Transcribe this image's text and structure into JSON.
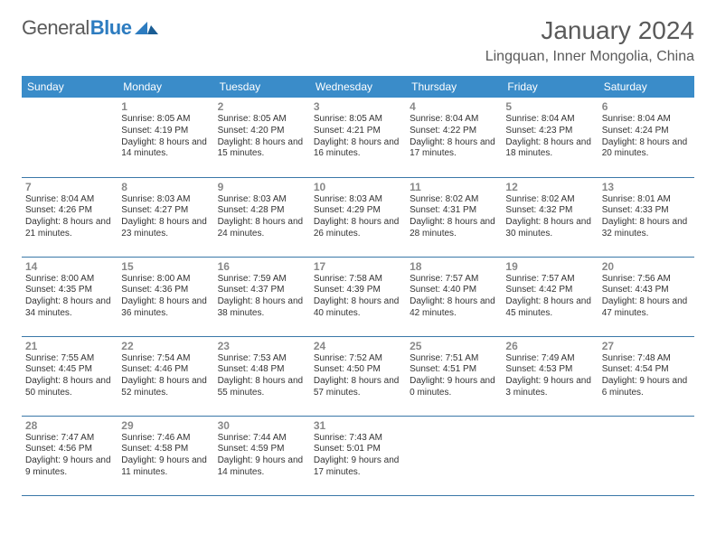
{
  "logo": {
    "general": "General",
    "blue": "Blue"
  },
  "title": "January 2024",
  "location": "Lingquan, Inner Mongolia, China",
  "colors": {
    "header_bg": "#3a8cc9",
    "header_text": "#ffffff",
    "row_border": "#3a78a8",
    "daynum": "#888888",
    "body_text": "#333333",
    "title_text": "#5a5a5a",
    "logo_blue": "#2d7cc0",
    "page_bg": "#ffffff"
  },
  "typography": {
    "title_fontsize": 28,
    "location_fontsize": 16,
    "dayheader_fontsize": 12,
    "daynum_fontsize": 12,
    "info_fontsize": 10
  },
  "dayHeaders": [
    "Sunday",
    "Monday",
    "Tuesday",
    "Wednesday",
    "Thursday",
    "Friday",
    "Saturday"
  ],
  "weeks": [
    [
      {
        "day": "",
        "sunrise": "",
        "sunset": "",
        "daylight": ""
      },
      {
        "day": "1",
        "sunrise": "Sunrise: 8:05 AM",
        "sunset": "Sunset: 4:19 PM",
        "daylight": "Daylight: 8 hours and 14 minutes."
      },
      {
        "day": "2",
        "sunrise": "Sunrise: 8:05 AM",
        "sunset": "Sunset: 4:20 PM",
        "daylight": "Daylight: 8 hours and 15 minutes."
      },
      {
        "day": "3",
        "sunrise": "Sunrise: 8:05 AM",
        "sunset": "Sunset: 4:21 PM",
        "daylight": "Daylight: 8 hours and 16 minutes."
      },
      {
        "day": "4",
        "sunrise": "Sunrise: 8:04 AM",
        "sunset": "Sunset: 4:22 PM",
        "daylight": "Daylight: 8 hours and 17 minutes."
      },
      {
        "day": "5",
        "sunrise": "Sunrise: 8:04 AM",
        "sunset": "Sunset: 4:23 PM",
        "daylight": "Daylight: 8 hours and 18 minutes."
      },
      {
        "day": "6",
        "sunrise": "Sunrise: 8:04 AM",
        "sunset": "Sunset: 4:24 PM",
        "daylight": "Daylight: 8 hours and 20 minutes."
      }
    ],
    [
      {
        "day": "7",
        "sunrise": "Sunrise: 8:04 AM",
        "sunset": "Sunset: 4:26 PM",
        "daylight": "Daylight: 8 hours and 21 minutes."
      },
      {
        "day": "8",
        "sunrise": "Sunrise: 8:03 AM",
        "sunset": "Sunset: 4:27 PM",
        "daylight": "Daylight: 8 hours and 23 minutes."
      },
      {
        "day": "9",
        "sunrise": "Sunrise: 8:03 AM",
        "sunset": "Sunset: 4:28 PM",
        "daylight": "Daylight: 8 hours and 24 minutes."
      },
      {
        "day": "10",
        "sunrise": "Sunrise: 8:03 AM",
        "sunset": "Sunset: 4:29 PM",
        "daylight": "Daylight: 8 hours and 26 minutes."
      },
      {
        "day": "11",
        "sunrise": "Sunrise: 8:02 AM",
        "sunset": "Sunset: 4:31 PM",
        "daylight": "Daylight: 8 hours and 28 minutes."
      },
      {
        "day": "12",
        "sunrise": "Sunrise: 8:02 AM",
        "sunset": "Sunset: 4:32 PM",
        "daylight": "Daylight: 8 hours and 30 minutes."
      },
      {
        "day": "13",
        "sunrise": "Sunrise: 8:01 AM",
        "sunset": "Sunset: 4:33 PM",
        "daylight": "Daylight: 8 hours and 32 minutes."
      }
    ],
    [
      {
        "day": "14",
        "sunrise": "Sunrise: 8:00 AM",
        "sunset": "Sunset: 4:35 PM",
        "daylight": "Daylight: 8 hours and 34 minutes."
      },
      {
        "day": "15",
        "sunrise": "Sunrise: 8:00 AM",
        "sunset": "Sunset: 4:36 PM",
        "daylight": "Daylight: 8 hours and 36 minutes."
      },
      {
        "day": "16",
        "sunrise": "Sunrise: 7:59 AM",
        "sunset": "Sunset: 4:37 PM",
        "daylight": "Daylight: 8 hours and 38 minutes."
      },
      {
        "day": "17",
        "sunrise": "Sunrise: 7:58 AM",
        "sunset": "Sunset: 4:39 PM",
        "daylight": "Daylight: 8 hours and 40 minutes."
      },
      {
        "day": "18",
        "sunrise": "Sunrise: 7:57 AM",
        "sunset": "Sunset: 4:40 PM",
        "daylight": "Daylight: 8 hours and 42 minutes."
      },
      {
        "day": "19",
        "sunrise": "Sunrise: 7:57 AM",
        "sunset": "Sunset: 4:42 PM",
        "daylight": "Daylight: 8 hours and 45 minutes."
      },
      {
        "day": "20",
        "sunrise": "Sunrise: 7:56 AM",
        "sunset": "Sunset: 4:43 PM",
        "daylight": "Daylight: 8 hours and 47 minutes."
      }
    ],
    [
      {
        "day": "21",
        "sunrise": "Sunrise: 7:55 AM",
        "sunset": "Sunset: 4:45 PM",
        "daylight": "Daylight: 8 hours and 50 minutes."
      },
      {
        "day": "22",
        "sunrise": "Sunrise: 7:54 AM",
        "sunset": "Sunset: 4:46 PM",
        "daylight": "Daylight: 8 hours and 52 minutes."
      },
      {
        "day": "23",
        "sunrise": "Sunrise: 7:53 AM",
        "sunset": "Sunset: 4:48 PM",
        "daylight": "Daylight: 8 hours and 55 minutes."
      },
      {
        "day": "24",
        "sunrise": "Sunrise: 7:52 AM",
        "sunset": "Sunset: 4:50 PM",
        "daylight": "Daylight: 8 hours and 57 minutes."
      },
      {
        "day": "25",
        "sunrise": "Sunrise: 7:51 AM",
        "sunset": "Sunset: 4:51 PM",
        "daylight": "Daylight: 9 hours and 0 minutes."
      },
      {
        "day": "26",
        "sunrise": "Sunrise: 7:49 AM",
        "sunset": "Sunset: 4:53 PM",
        "daylight": "Daylight: 9 hours and 3 minutes."
      },
      {
        "day": "27",
        "sunrise": "Sunrise: 7:48 AM",
        "sunset": "Sunset: 4:54 PM",
        "daylight": "Daylight: 9 hours and 6 minutes."
      }
    ],
    [
      {
        "day": "28",
        "sunrise": "Sunrise: 7:47 AM",
        "sunset": "Sunset: 4:56 PM",
        "daylight": "Daylight: 9 hours and 9 minutes."
      },
      {
        "day": "29",
        "sunrise": "Sunrise: 7:46 AM",
        "sunset": "Sunset: 4:58 PM",
        "daylight": "Daylight: 9 hours and 11 minutes."
      },
      {
        "day": "30",
        "sunrise": "Sunrise: 7:44 AM",
        "sunset": "Sunset: 4:59 PM",
        "daylight": "Daylight: 9 hours and 14 minutes."
      },
      {
        "day": "31",
        "sunrise": "Sunrise: 7:43 AM",
        "sunset": "Sunset: 5:01 PM",
        "daylight": "Daylight: 9 hours and 17 minutes."
      },
      {
        "day": "",
        "sunrise": "",
        "sunset": "",
        "daylight": ""
      },
      {
        "day": "",
        "sunrise": "",
        "sunset": "",
        "daylight": ""
      },
      {
        "day": "",
        "sunrise": "",
        "sunset": "",
        "daylight": ""
      }
    ]
  ]
}
